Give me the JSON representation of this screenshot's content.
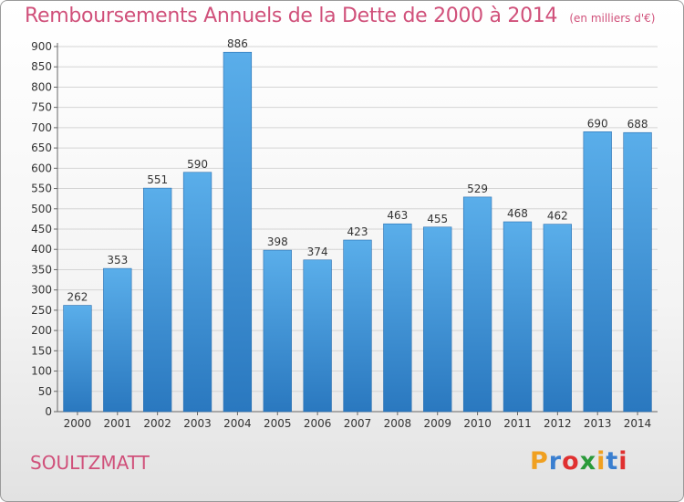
{
  "header": {
    "title": "Remboursements Annuels de la Dette de 2000 à 2014",
    "unit": "(en milliers d'€)"
  },
  "footer": {
    "commune": "SOULTZMATT",
    "logo_text": "Proxiti",
    "logo_colors": [
      "#f0a020",
      "#3a7fd0",
      "#e03030",
      "#2a9a3a",
      "#f0a020",
      "#3a7fd0",
      "#e03030"
    ]
  },
  "chart_data": {
    "type": "bar",
    "title": "Remboursements Annuels de la Dette de 2000 à 2014",
    "xlabel": "",
    "ylabel": "",
    "categories": [
      "2000",
      "2001",
      "2002",
      "2003",
      "2004",
      "2005",
      "2006",
      "2007",
      "2008",
      "2009",
      "2010",
      "2011",
      "2012",
      "2013",
      "2014"
    ],
    "values": [
      262,
      353,
      551,
      590,
      886,
      398,
      374,
      423,
      463,
      455,
      529,
      468,
      462,
      690,
      688
    ],
    "ylim": [
      0,
      900
    ],
    "yticks": [
      0,
      50,
      100,
      150,
      200,
      250,
      300,
      350,
      400,
      450,
      500,
      550,
      600,
      650,
      700,
      750,
      800,
      850,
      900
    ],
    "grid": true,
    "bar_color": "#4a9fe0",
    "bar_color_dark": "#2a78c0"
  }
}
